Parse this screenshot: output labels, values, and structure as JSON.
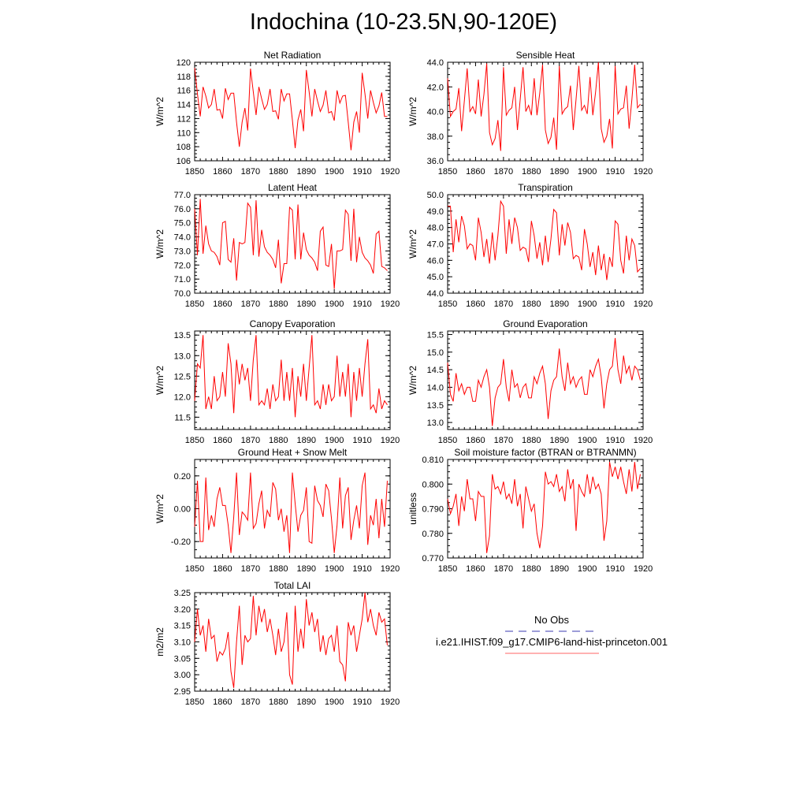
{
  "main_title": "Indochina (10-23.5N,90-120E)",
  "x_ticks": [
    1850,
    1860,
    1870,
    1880,
    1890,
    1900,
    1910,
    1920
  ],
  "xlim": [
    1850,
    1920
  ],
  "line_color": "#ff0000",
  "legend": {
    "obs_label": "No Obs",
    "obs_color": "#3b3bb0",
    "model_label": "i.e21.IHIST.f09_g17.CMIP6-land-hist-princeton.001",
    "model_color": "#ff6666"
  },
  "chart_data": [
    {
      "type": "line",
      "title": "Net Radiation",
      "ylabel": "W/m^2",
      "ylim": [
        106,
        120
      ],
      "yticks": [
        106,
        108,
        110,
        112,
        114,
        116,
        118,
        120
      ],
      "ytick_labels": [
        "106",
        "108",
        "110",
        "112",
        "114",
        "116",
        "118",
        "120"
      ],
      "x_start": 1850,
      "values": [
        119.2,
        115.5,
        112.3,
        116.5,
        115.2,
        113.5,
        114.0,
        116.2,
        113.2,
        113.3,
        112.0,
        116.3,
        114.7,
        115.6,
        115.6,
        111.5,
        108.0,
        111.5,
        113.5,
        110.3,
        119.1,
        115.8,
        112.5,
        116.5,
        114.8,
        113.3,
        114.0,
        116.2,
        113.0,
        113.1,
        111.9,
        116.2,
        114.5,
        115.5,
        115.5,
        111.8,
        107.8,
        111.8,
        113.3,
        110.2,
        118.9,
        115.8,
        112.3,
        116.2,
        114.5,
        113.0,
        113.9,
        116.0,
        112.8,
        113.0,
        111.7,
        116.0,
        114.2,
        115.2,
        115.3,
        111.5,
        107.5,
        111.5,
        113.0,
        110.0,
        118.5,
        115.5,
        112.0,
        116.0,
        114.3,
        112.8,
        113.8,
        115.7,
        112.3,
        112.3
      ]
    },
    {
      "type": "line",
      "title": "Sensible Heat",
      "ylabel": "W/m^2",
      "ylim": [
        36,
        44
      ],
      "yticks": [
        36,
        38,
        40,
        42,
        44
      ],
      "ytick_labels": [
        "36.0",
        "38.0",
        "40.0",
        "42.0",
        "44.0"
      ],
      "x_start": 1850,
      "values": [
        42.7,
        39.6,
        40.0,
        40.2,
        41.9,
        38.4,
        40.9,
        43.5,
        40.0,
        40.4,
        39.8,
        42.6,
        39.6,
        41.4,
        43.9,
        38.3,
        37.3,
        37.8,
        39.3,
        36.8,
        43.6,
        39.7,
        40.1,
        40.3,
        42.0,
        38.5,
        41.0,
        43.6,
        40.0,
        40.5,
        39.7,
        42.7,
        39.7,
        41.5,
        43.8,
        38.5,
        37.4,
        37.9,
        39.5,
        36.9,
        43.7,
        39.8,
        40.2,
        40.4,
        42.1,
        38.5,
        41.0,
        43.7,
        40.1,
        40.5,
        39.8,
        42.8,
        39.7,
        41.6,
        44.0,
        38.6,
        37.5,
        38.0,
        39.4,
        37.0,
        43.7,
        39.8,
        40.2,
        40.3,
        42.1,
        38.6,
        41.0,
        43.8,
        40.3,
        40.6
      ]
    },
    {
      "type": "line",
      "title": "Latent Heat",
      "ylabel": "W/m^2",
      "ylim": [
        70,
        77
      ],
      "yticks": [
        70,
        71,
        72,
        73,
        74,
        75,
        76,
        77
      ],
      "ytick_labels": [
        "70.0",
        "71.0",
        "72.0",
        "73.0",
        "74.0",
        "75.0",
        "76.0",
        "77.0"
      ],
      "x_start": 1850,
      "values": [
        76.0,
        72.7,
        76.7,
        72.8,
        74.8,
        73.5,
        73.0,
        72.9,
        72.6,
        72.0,
        75.0,
        75.1,
        72.4,
        72.2,
        73.9,
        70.9,
        73.6,
        73.5,
        73.6,
        76.4,
        76.1,
        72.7,
        76.6,
        72.6,
        74.5,
        73.3,
        72.9,
        72.7,
        72.4,
        71.8,
        73.8,
        70.7,
        72.1,
        72.1,
        76.1,
        75.9,
        72.4,
        76.3,
        72.4,
        74.3,
        73.1,
        72.7,
        72.5,
        72.2,
        71.6,
        74.4,
        74.7,
        72.0,
        71.9,
        73.5,
        70.3,
        73.0,
        73.0,
        73.1,
        75.9,
        75.6,
        72.3,
        76.0,
        72.2,
        74.0,
        72.9,
        72.5,
        72.3,
        72.0,
        71.4,
        74.2,
        74.4,
        71.9,
        71.8,
        71.6
      ]
    },
    {
      "type": "line",
      "title": "Transpiration",
      "ylabel": "W/m^2",
      "ylim": [
        44,
        50
      ],
      "yticks": [
        44,
        45,
        46,
        47,
        48,
        49,
        50
      ],
      "ytick_labels": [
        "44.0",
        "45.0",
        "46.0",
        "47.0",
        "48.0",
        "49.0",
        "50.0"
      ],
      "x_start": 1850,
      "values": [
        49.3,
        49.3,
        46.5,
        48.5,
        47.1,
        48.7,
        48.1,
        46.7,
        47.0,
        46.9,
        46.0,
        48.6,
        47.7,
        46.2,
        47.3,
        45.8,
        47.7,
        46.0,
        47.5,
        49.6,
        49.3,
        46.4,
        48.5,
        47.0,
        48.6,
        48.0,
        46.6,
        46.8,
        46.7,
        45.9,
        48.4,
        47.5,
        46.1,
        47.1,
        45.7,
        47.5,
        45.9,
        47.3,
        49.1,
        48.9,
        46.3,
        48.2,
        46.9,
        48.3,
        47.7,
        46.1,
        46.3,
        46.2,
        45.4,
        47.9,
        47.0,
        45.6,
        46.5,
        45.1,
        46.9,
        45.4,
        46.4,
        44.8,
        46.2,
        45.6,
        48.4,
        48.2,
        46.0,
        45.2,
        47.5,
        46.0,
        47.3,
        46.9,
        45.3,
        45.5
      ]
    },
    {
      "type": "line",
      "title": "Canopy Evaporation",
      "ylabel": "W/m^2",
      "ylim": [
        11.2,
        13.6
      ],
      "yticks": [
        11.5,
        12.0,
        12.5,
        13.0,
        13.5
      ],
      "ytick_labels": [
        "11.5",
        "12.0",
        "12.5",
        "13.0",
        "13.5"
      ],
      "x_start": 1850,
      "values": [
        11.9,
        12.8,
        12.7,
        13.5,
        11.7,
        12.0,
        11.7,
        12.5,
        11.9,
        12.0,
        12.6,
        12.0,
        13.3,
        12.8,
        11.6,
        12.9,
        12.3,
        12.8,
        12.4,
        12.7,
        11.9,
        12.9,
        13.5,
        11.8,
        11.9,
        11.8,
        12.2,
        11.7,
        12.3,
        11.9,
        12.0,
        12.9,
        11.9,
        12.6,
        11.9,
        12.7,
        11.5,
        12.5,
        12.0,
        12.8,
        11.9,
        12.7,
        13.5,
        11.8,
        11.9,
        11.7,
        12.3,
        11.8,
        12.3,
        11.9,
        12.0,
        13.0,
        12.0,
        12.6,
        12.0,
        12.8,
        11.5,
        12.6,
        11.9,
        12.7,
        12.0,
        12.8,
        13.4,
        11.7,
        11.8,
        11.6,
        12.2,
        11.7,
        11.9,
        11.8
      ]
    },
    {
      "type": "line",
      "title": "Ground Evaporation",
      "ylabel": "W/m^2",
      "ylim": [
        12.8,
        15.6
      ],
      "yticks": [
        13.0,
        13.5,
        14.0,
        14.5,
        15.0,
        15.5
      ],
      "ytick_labels": [
        "13.0",
        "13.5",
        "14.0",
        "14.5",
        "15.0",
        "15.5"
      ],
      "x_start": 1850,
      "values": [
        14.7,
        13.8,
        13.6,
        14.4,
        13.9,
        14.1,
        13.8,
        14.0,
        14.0,
        13.6,
        13.6,
        14.2,
        14.0,
        14.3,
        14.5,
        14.0,
        12.9,
        13.7,
        14.0,
        14.1,
        14.8,
        14.0,
        13.6,
        14.5,
        14.0,
        14.1,
        13.7,
        14.0,
        14.1,
        13.7,
        13.7,
        14.3,
        14.1,
        14.4,
        14.6,
        14.1,
        13.1,
        13.9,
        14.2,
        14.3,
        15.1,
        14.3,
        13.9,
        14.7,
        14.1,
        14.3,
        14.0,
        14.2,
        14.3,
        13.8,
        13.8,
        14.5,
        14.3,
        14.6,
        14.8,
        14.3,
        13.4,
        14.1,
        14.5,
        14.6,
        15.4,
        14.5,
        14.1,
        14.9,
        14.4,
        14.6,
        14.2,
        14.6,
        14.5,
        14.2
      ]
    },
    {
      "type": "line",
      "title": "Ground Heat + Snow Melt",
      "ylabel": "W/m^2",
      "ylim": [
        -0.3,
        0.3
      ],
      "yticks": [
        -0.2,
        0.0,
        0.2
      ],
      "ytick_labels": [
        "-0.20",
        "0.00",
        "0.20"
      ],
      "x_start": 1850,
      "values": [
        -0.11,
        0.17,
        -0.2,
        -0.2,
        0.19,
        -0.13,
        -0.04,
        -0.11,
        0.06,
        0.13,
        0.02,
        0.02,
        -0.1,
        -0.27,
        -0.05,
        0.22,
        -0.16,
        -0.02,
        -0.04,
        -0.07,
        0.22,
        -0.12,
        -0.09,
        0.03,
        0.11,
        -0.12,
        -0.01,
        -0.05,
        0.16,
        0.12,
        -0.07,
        0.0,
        -0.14,
        -0.04,
        -0.27,
        0.22,
        0.03,
        -0.14,
        -0.04,
        -0.01,
        0.13,
        -0.2,
        -0.21,
        0.14,
        0.05,
        0.02,
        -0.05,
        0.15,
        0.11,
        -0.06,
        -0.27,
        -0.1,
        0.19,
        -0.12,
        0.08,
        0.13,
        -0.19,
        -0.07,
        0.02,
        -0.12,
        0.14,
        0.22,
        -0.22,
        -0.04,
        -0.1,
        0.06,
        -0.18,
        0.06,
        -0.11,
        0.17
      ]
    },
    {
      "type": "line",
      "title": "Soil moisture factor (BTRAN or BTRANMN)",
      "ylabel": "unitless",
      "ylim": [
        0.77,
        0.81
      ],
      "yticks": [
        0.77,
        0.78,
        0.79,
        0.8,
        0.81
      ],
      "ytick_labels": [
        "0.770",
        "0.780",
        "0.790",
        "0.800",
        "0.810"
      ],
      "x_start": 1850,
      "values": [
        0.794,
        0.788,
        0.791,
        0.796,
        0.783,
        0.795,
        0.789,
        0.802,
        0.794,
        0.794,
        0.785,
        0.797,
        0.795,
        0.795,
        0.772,
        0.779,
        0.804,
        0.798,
        0.799,
        0.796,
        0.801,
        0.794,
        0.796,
        0.792,
        0.802,
        0.791,
        0.796,
        0.782,
        0.799,
        0.794,
        0.789,
        0.792,
        0.78,
        0.774,
        0.783,
        0.805,
        0.8,
        0.801,
        0.799,
        0.804,
        0.797,
        0.799,
        0.793,
        0.806,
        0.798,
        0.802,
        0.781,
        0.8,
        0.797,
        0.795,
        0.804,
        0.796,
        0.803,
        0.798,
        0.8,
        0.796,
        0.777,
        0.785,
        0.809,
        0.803,
        0.807,
        0.802,
        0.807,
        0.801,
        0.796,
        0.806,
        0.797,
        0.809,
        0.798,
        0.804
      ]
    },
    {
      "type": "line",
      "title": "Total LAI",
      "ylabel": "m2/m2",
      "ylim": [
        2.95,
        3.25
      ],
      "yticks": [
        2.95,
        3.0,
        3.05,
        3.1,
        3.15,
        3.2,
        3.25
      ],
      "ytick_labels": [
        "2.95",
        "3.00",
        "3.05",
        "3.10",
        "3.15",
        "3.20",
        "3.25"
      ],
      "x_start": 1850,
      "values": [
        3.1,
        3.2,
        3.12,
        3.15,
        3.07,
        3.17,
        3.11,
        3.12,
        3.04,
        3.07,
        3.06,
        3.08,
        3.13,
        3.01,
        2.96,
        3.1,
        3.21,
        3.03,
        3.12,
        3.1,
        3.11,
        3.24,
        3.12,
        3.21,
        3.16,
        3.2,
        3.13,
        3.17,
        3.12,
        3.06,
        3.14,
        3.07,
        3.1,
        3.19,
        3.0,
        2.97,
        3.21,
        3.07,
        3.14,
        3.08,
        3.23,
        3.15,
        3.19,
        3.13,
        3.17,
        3.07,
        3.12,
        3.06,
        3.11,
        3.12,
        3.07,
        3.15,
        3.04,
        3.03,
        2.98,
        3.16,
        3.12,
        3.15,
        3.07,
        3.12,
        3.17,
        3.25,
        3.16,
        3.2,
        3.15,
        3.12,
        3.19,
        3.16,
        3.17,
        3.09
      ]
    }
  ]
}
